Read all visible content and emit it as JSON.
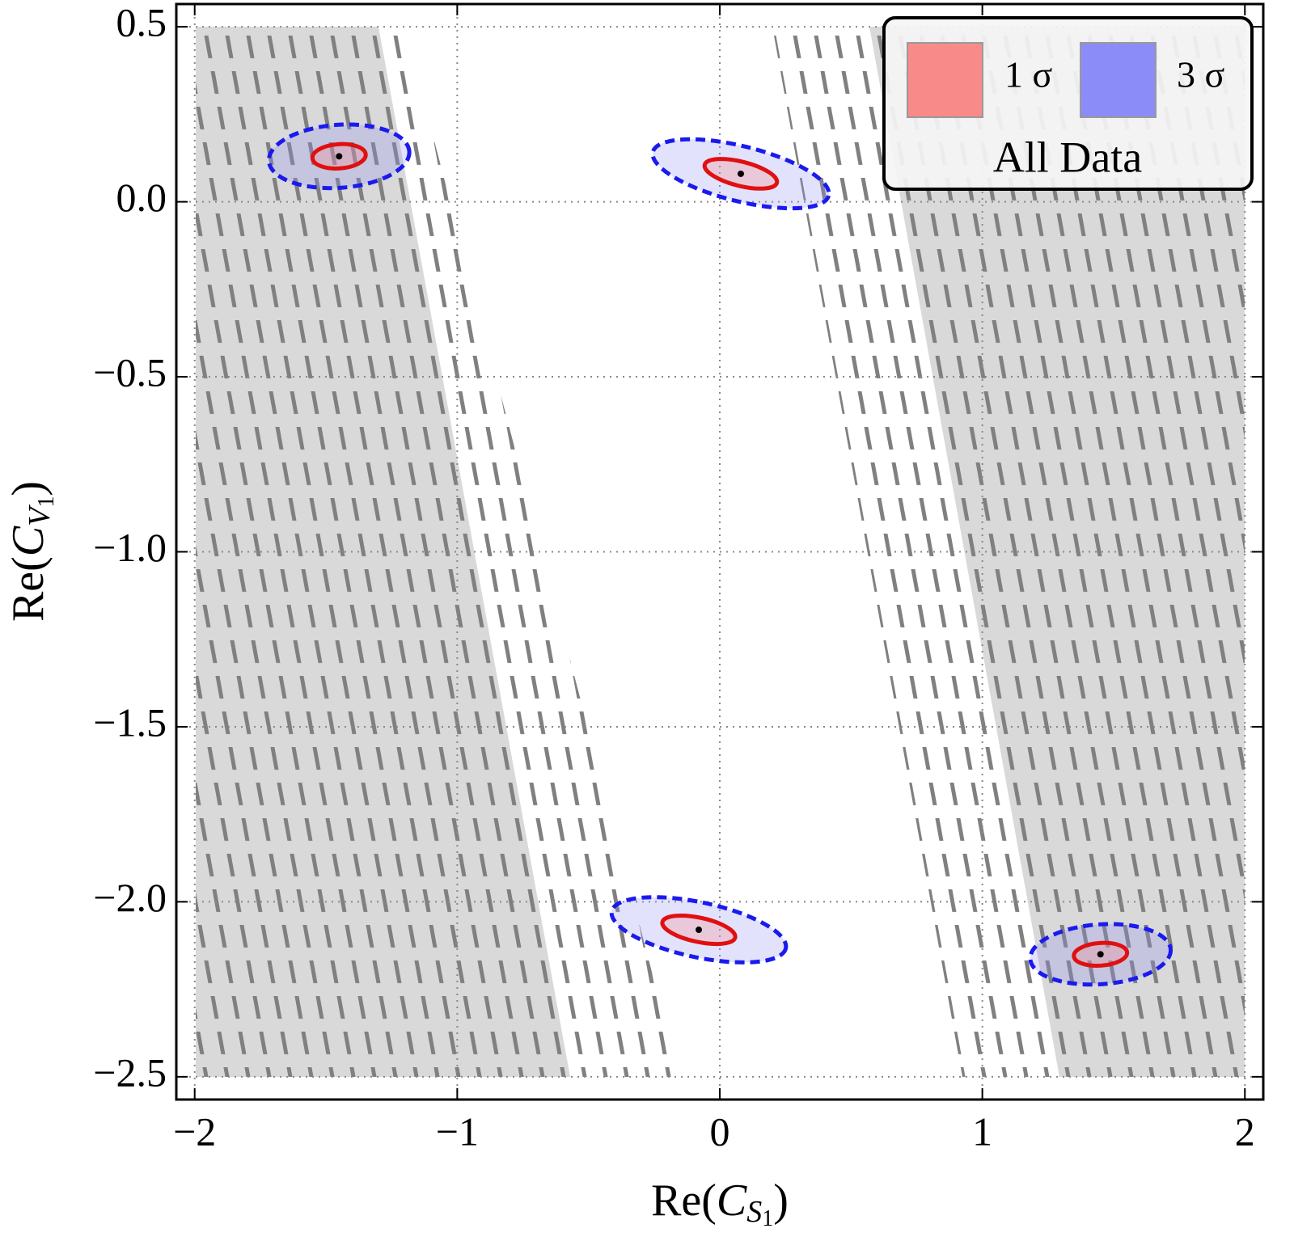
{
  "chart_data": {
    "type": "contour",
    "xlabel": [
      "Re(",
      "C",
      "S",
      "1",
      ")"
    ],
    "ylabel": [
      "Re(",
      "C",
      "V",
      "1",
      ")"
    ],
    "xlim": [
      -2.07,
      2.07
    ],
    "ylim": [
      -2.565,
      0.565
    ],
    "xticks": [
      {
        "value": -2,
        "label": "−2"
      },
      {
        "value": -1,
        "label": "−1"
      },
      0,
      1,
      2
    ],
    "yticks": [
      0.5,
      {
        "value": 0,
        "label": "0.0"
      },
      {
        "value": -0.5,
        "label": "−0.5"
      },
      {
        "value": -1,
        "label": "−1.0"
      },
      {
        "value": -1.5,
        "label": "−1.5"
      },
      {
        "value": -2,
        "label": "−2.0"
      },
      {
        "value": -2.5,
        "label": "−2.5"
      }
    ],
    "grid": true,
    "series": [
      {
        "name": "1 σ",
        "color": "#f88a8a"
      },
      {
        "name": "3 σ",
        "color": "#8c8cf8"
      }
    ],
    "legend_title": "All Data",
    "legend": "upper right",
    "points": {
      "x": [
        -1.45,
        0.08,
        -0.08,
        1.45
      ],
      "y": [
        0.13,
        0.08,
        -2.08,
        -2.15
      ]
    }
  }
}
